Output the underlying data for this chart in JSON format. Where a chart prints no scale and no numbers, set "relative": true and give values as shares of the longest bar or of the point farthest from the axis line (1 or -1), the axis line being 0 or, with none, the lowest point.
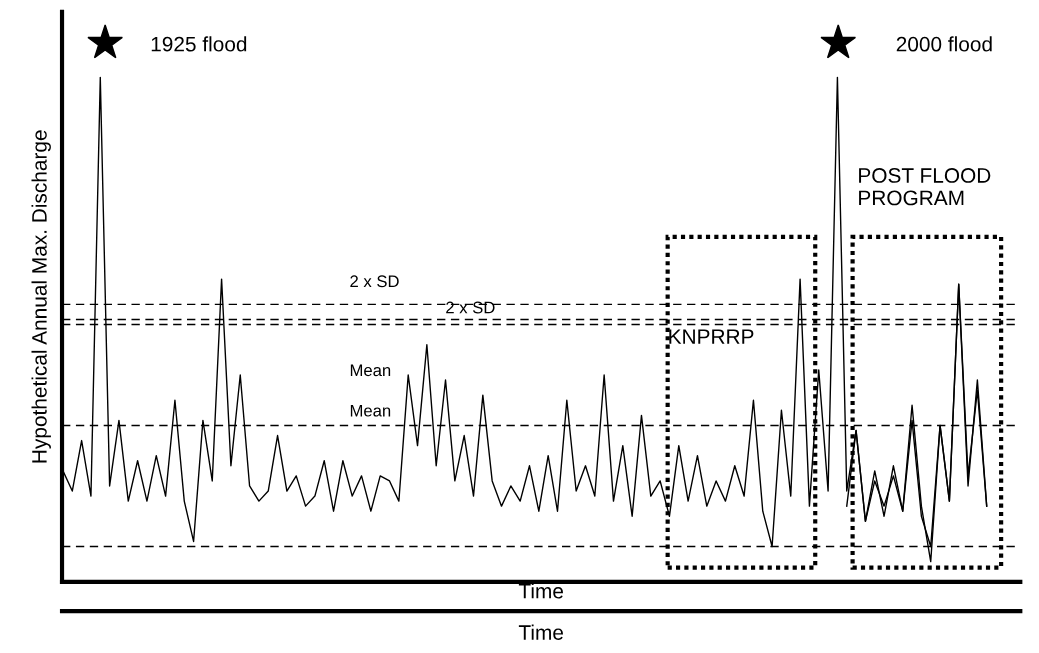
{
  "chart_data": {
    "type": "line",
    "relative": true,
    "ylabel": "Hypothetical Annual Max. Discharge",
    "xlabel": "Time",
    "categories": [
      null,
      null,
      null,
      null,
      null,
      null,
      null,
      null,
      null,
      null,
      null,
      null,
      null,
      null,
      null,
      null,
      null,
      null,
      null,
      null,
      null,
      null,
      null,
      null,
      null,
      null,
      null,
      null,
      null,
      null,
      null,
      null,
      null,
      null,
      null,
      null,
      null,
      null,
      null,
      null,
      null,
      null,
      null,
      null,
      null,
      null,
      null,
      null,
      null,
      null,
      null,
      null,
      null,
      null,
      null,
      null,
      null,
      null,
      null,
      null,
      null,
      null,
      null,
      null,
      null,
      null,
      null,
      null,
      null,
      null,
      null,
      null,
      null,
      null,
      null,
      null,
      null,
      null,
      null,
      null,
      null,
      null,
      null,
      null,
      null,
      null,
      null,
      null,
      null,
      null,
      null,
      null,
      null,
      null,
      null,
      null,
      null,
      null,
      null,
      null
    ],
    "series": [
      {
        "color": "#000000",
        "values": [
          0.22,
          0.18,
          0.28,
          0.17,
          1.0,
          0.19,
          0.32,
          0.16,
          0.24,
          0.16,
          0.25,
          0.17,
          0.36,
          0.16,
          0.08,
          0.32,
          0.2,
          0.6,
          0.23,
          0.41,
          0.19,
          0.16,
          0.18,
          0.29,
          0.18,
          0.21,
          0.15,
          0.17,
          0.24,
          0.14,
          0.24,
          0.17,
          0.21,
          0.14,
          0.21,
          0.2,
          0.16,
          0.41,
          0.27,
          0.47,
          0.23,
          0.4,
          0.2,
          0.29,
          0.17,
          0.37,
          0.2,
          0.15,
          0.19,
          0.16,
          0.23,
          0.14,
          0.25,
          0.14,
          0.36,
          0.18,
          0.23,
          0.17,
          0.41,
          0.16,
          0.27,
          0.13,
          0.33,
          0.17,
          0.2,
          0.13,
          0.27,
          0.16,
          0.25,
          0.15,
          0.2,
          0.16,
          0.23,
          0.17,
          0.36,
          0.14,
          0.07,
          0.34,
          0.17,
          0.6,
          0.15,
          0.42,
          0.18,
          1.0,
          0.18,
          0.3,
          0.12,
          0.22,
          0.13,
          0.23,
          0.14,
          0.35,
          0.15,
          0.04,
          0.31,
          0.16,
          0.59,
          0.19,
          0.4,
          0.15
        ]
      },
      {
        "color": "#000000",
        "values": [
          null,
          null,
          null,
          null,
          null,
          null,
          null,
          null,
          null,
          null,
          null,
          null,
          null,
          null,
          null,
          null,
          null,
          null,
          null,
          null,
          null,
          null,
          null,
          null,
          null,
          null,
          null,
          null,
          null,
          null,
          null,
          null,
          null,
          null,
          null,
          null,
          null,
          null,
          null,
          null,
          null,
          null,
          null,
          null,
          null,
          null,
          null,
          null,
          null,
          null,
          null,
          null,
          null,
          null,
          null,
          null,
          null,
          null,
          null,
          null,
          null,
          null,
          null,
          null,
          null,
          null,
          null,
          null,
          null,
          null,
          null,
          null,
          null,
          null,
          null,
          null,
          null,
          null,
          null,
          null,
          null,
          null,
          null,
          null,
          0.15,
          0.3,
          0.12,
          0.2,
          0.15,
          0.21,
          0.14,
          0.32,
          0.13,
          0.07,
          0.31,
          0.16,
          0.59,
          0.21,
          0.38,
          0.15
        ]
      }
    ],
    "ref_lines": [
      {
        "axis": "y",
        "value": 0.55,
        "label": "2 x SD",
        "line_style": "dashed",
        "color": "#000000"
      },
      {
        "axis": "y",
        "value": 0.52,
        "label": "2 x SD",
        "line_style": "dashed",
        "color": "#000000"
      },
      {
        "axis": "y",
        "value": 0.51,
        "line_style": "dashed",
        "color": "#000000"
      },
      {
        "axis": "y",
        "value": 0.31,
        "label": "Mean",
        "line_style": "dashed",
        "color": "#000000"
      },
      {
        "axis": "y",
        "value": 0.07,
        "line_style": "dashed",
        "color": "#000000"
      }
    ],
    "annotations": [
      "1925 flood",
      "2000 flood",
      "KNPRRP",
      "POST FLOOD\nPROGRAM",
      "Time",
      "Mean"
    ],
    "line_style": "solid",
    "marker": "none",
    "legend": false
  }
}
